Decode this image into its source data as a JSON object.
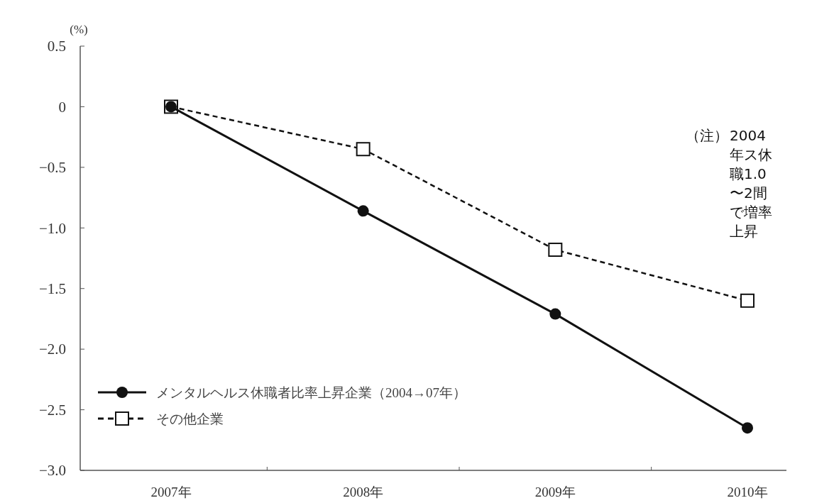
{
  "chart_data": {
    "type": "line",
    "ylabel": "(%)",
    "categories": [
      "2007年",
      "2008年",
      "2009年",
      "2010年"
    ],
    "series": [
      {
        "name": "メンタルヘルス休職者比率上昇企業（2004→07年）",
        "color": "#111111",
        "values": [
          0,
          -0.86,
          -1.71,
          -2.65
        ],
        "marker": "circle",
        "line_style": "solid"
      },
      {
        "name": "その他企業",
        "color": "#111111",
        "values": [
          0,
          -0.35,
          -1.18,
          -1.6
        ],
        "marker": "square",
        "line_style": "dashed"
      }
    ],
    "ylim": [
      -3.0,
      0.5
    ],
    "yticks": [
      {
        "value": 0.5,
        "label": "0.5"
      },
      0,
      {
        "value": -0.5,
        "label": "−0.5"
      },
      {
        "value": -1,
        "label": "−1.0"
      },
      {
        "value": -1.5,
        "label": "−1.5"
      },
      {
        "value": -2,
        "label": "−2.0"
      },
      {
        "value": -2.5,
        "label": "−2.5"
      },
      {
        "value": -3,
        "label": "−3.0"
      }
    ],
    "legend": "bottom left",
    "grid": false,
    "annotations": [
      "（注）2004 年ス休職1.0〜2間で増率上昇"
    ]
  }
}
